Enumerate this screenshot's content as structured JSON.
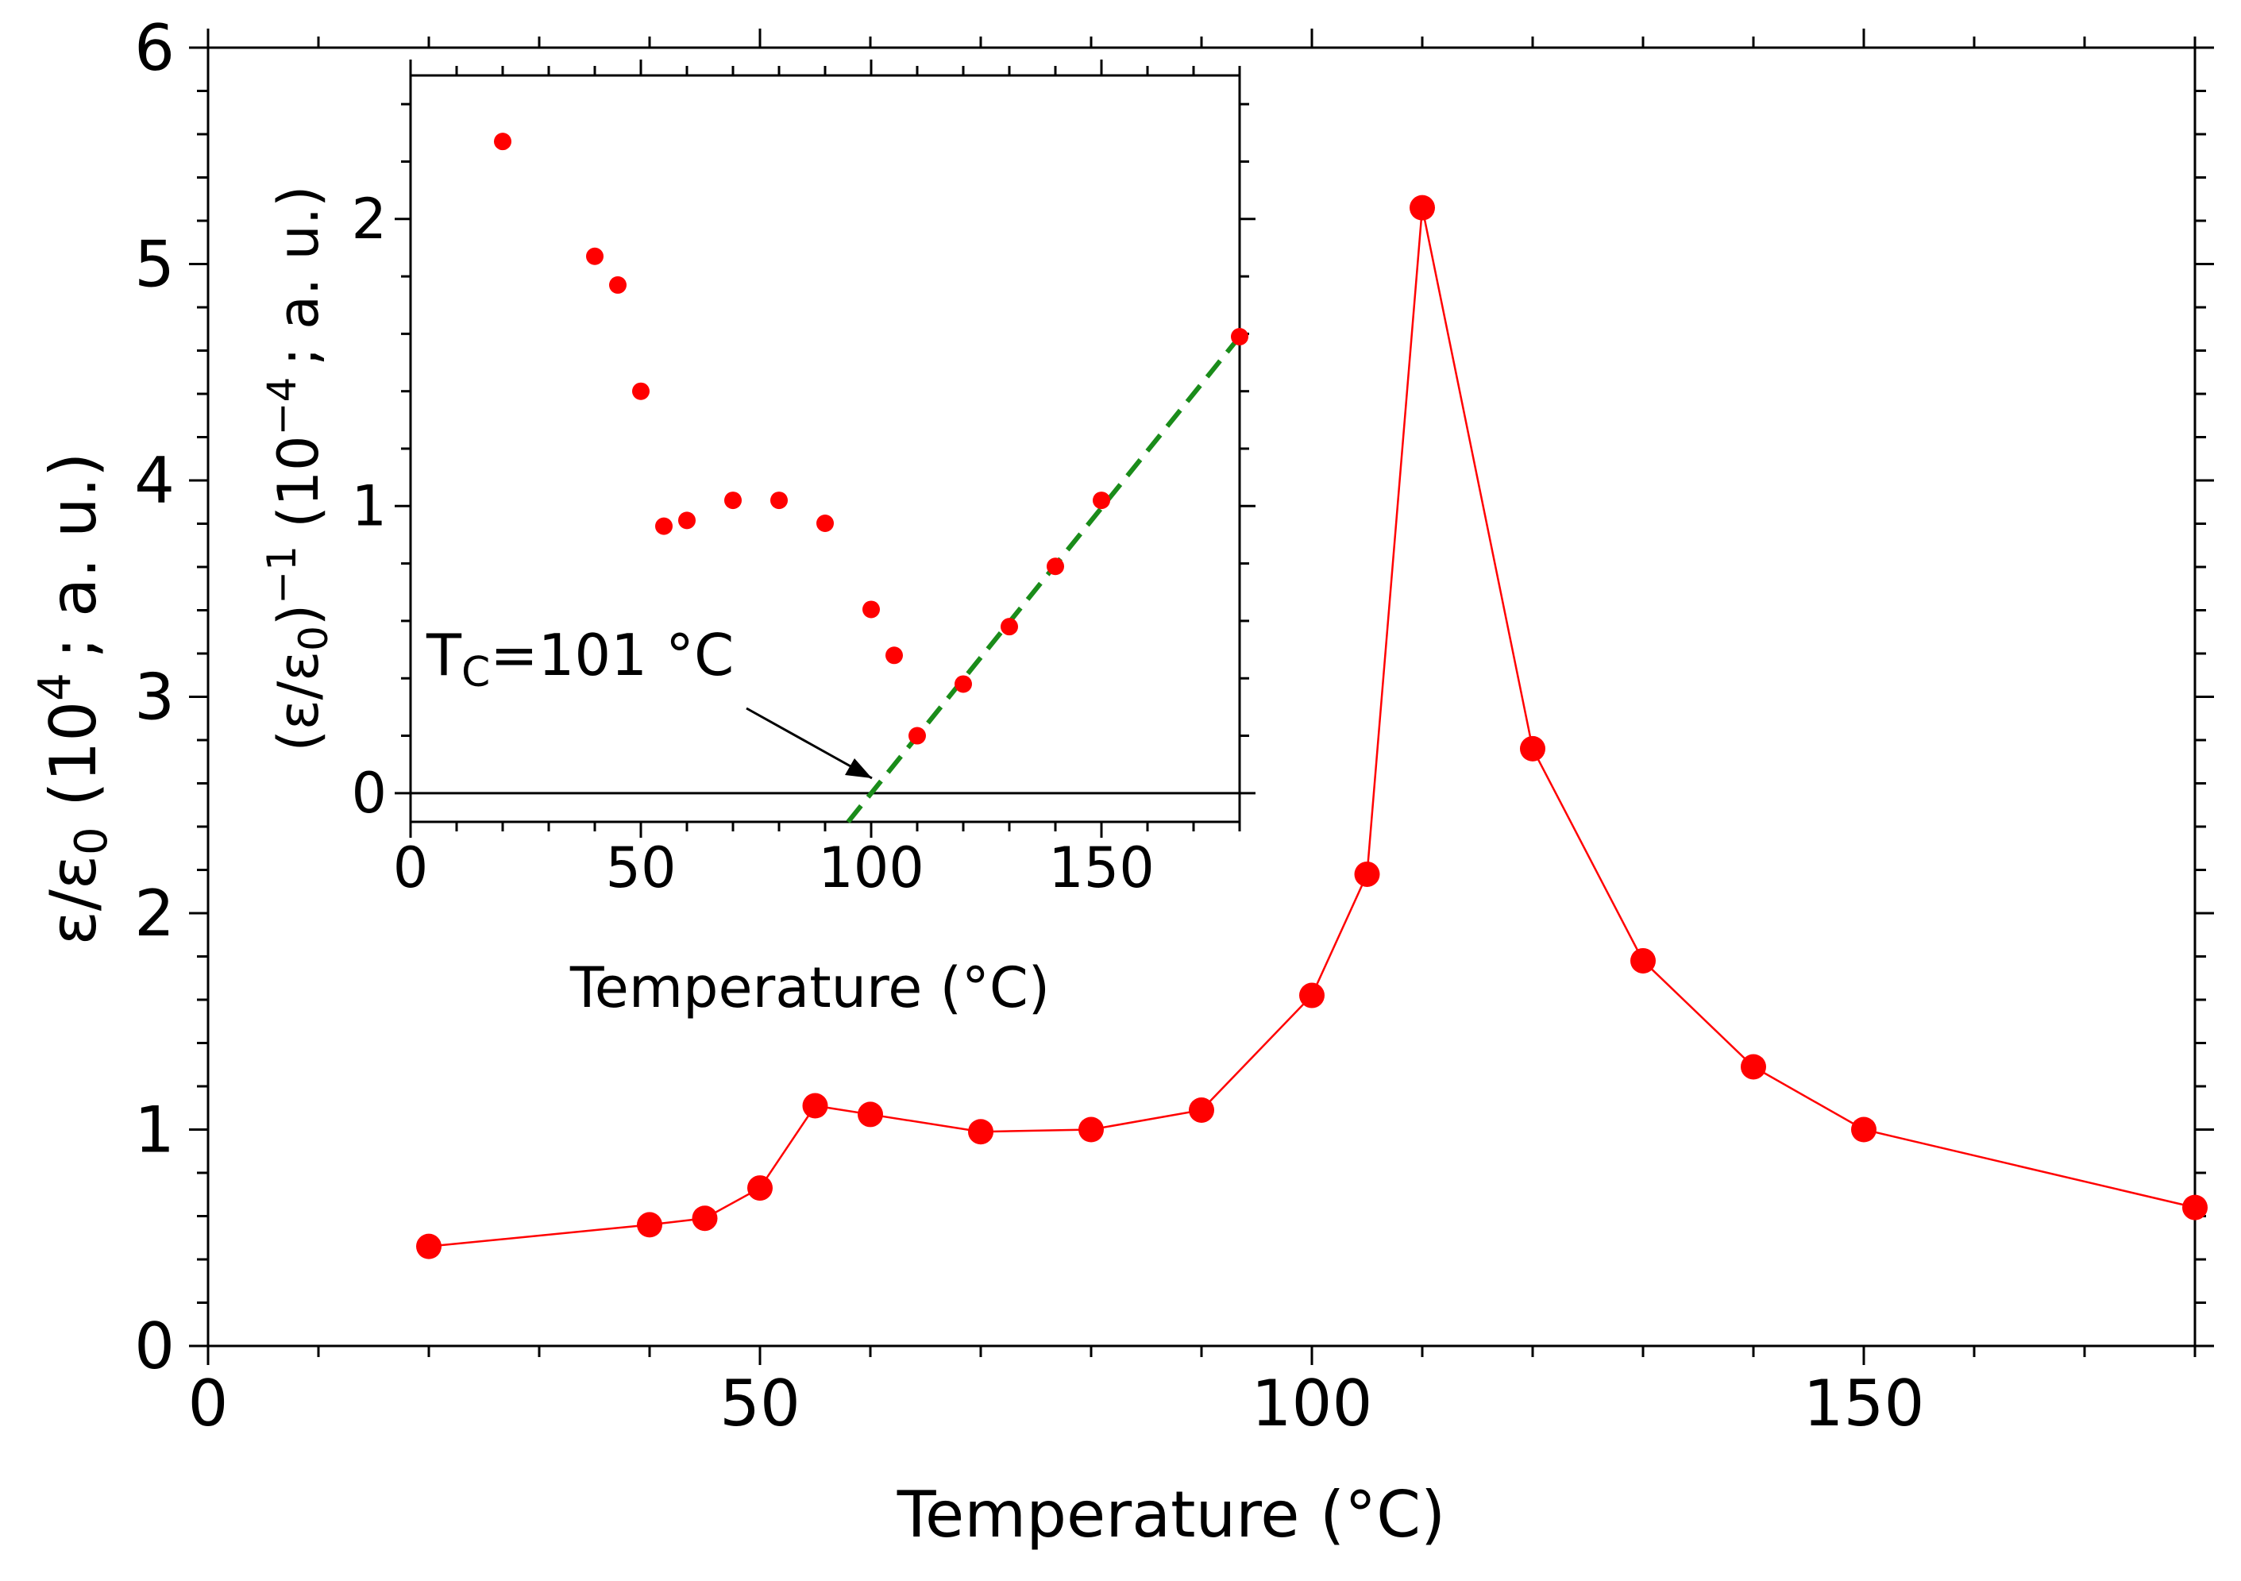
{
  "chart_data": [
    {
      "id": "main",
      "type": "line",
      "xlabel": "Temperature (°C)",
      "ylabel": {
        "pre": "ε/ε",
        "sub": "0",
        "mid": " (10",
        "sup": "4",
        "post": "; a. u.)"
      },
      "xlim": [
        0,
        180
      ],
      "ylim": [
        0,
        6
      ],
      "xticks": [
        0,
        50,
        100,
        150
      ],
      "yticks": [
        0,
        1,
        2,
        3,
        4,
        5,
        6
      ],
      "grid": false,
      "series": [
        {
          "name": "ε/ε0",
          "color": "#ff0000",
          "x": [
            20,
            40,
            45,
            50,
            55,
            60,
            70,
            80,
            90,
            100,
            105,
            110,
            120,
            130,
            140,
            150,
            180
          ],
          "y": [
            0.46,
            0.56,
            0.59,
            0.73,
            1.11,
            1.07,
            0.99,
            1.0,
            1.09,
            1.62,
            2.18,
            5.26,
            2.76,
            1.78,
            1.29,
            1.0,
            0.64
          ]
        }
      ]
    },
    {
      "id": "inset",
      "type": "scatter",
      "xlabel": "Temperature (°C)",
      "ylabel": {
        "pre": "(ε/ε",
        "sub": "0",
        "mid": ")",
        "sup": "−1",
        "mid2": " (10",
        "sup2": "−4",
        "post": "; a. u.)"
      },
      "xlim": [
        0,
        180
      ],
      "ylim": [
        -0.1,
        2.5
      ],
      "xticks": [
        0,
        50,
        100,
        150
      ],
      "yticks": [
        0,
        1,
        2
      ],
      "grid": false,
      "zero_line": true,
      "series": [
        {
          "name": "(ε/ε0)^-1",
          "color": "#ff0000",
          "x": [
            20,
            40,
            45,
            50,
            55,
            60,
            70,
            80,
            90,
            100,
            105,
            110,
            120,
            130,
            140,
            150,
            180
          ],
          "y": [
            2.27,
            1.87,
            1.77,
            1.4,
            0.93,
            0.95,
            1.02,
            1.02,
            0.94,
            0.64,
            0.48,
            0.2,
            0.38,
            0.58,
            0.79,
            1.02,
            1.59
          ]
        }
      ],
      "fit_line": {
        "color": "#1a8c1a",
        "style": "dashed",
        "x": [
          95,
          180
        ],
        "y": [
          -0.1,
          1.59
        ]
      },
      "annotation": {
        "text_pre": "T",
        "text_sub": "C",
        "text_post": "=101 °C",
        "arrow_to": [
          101,
          0.05
        ]
      }
    }
  ]
}
